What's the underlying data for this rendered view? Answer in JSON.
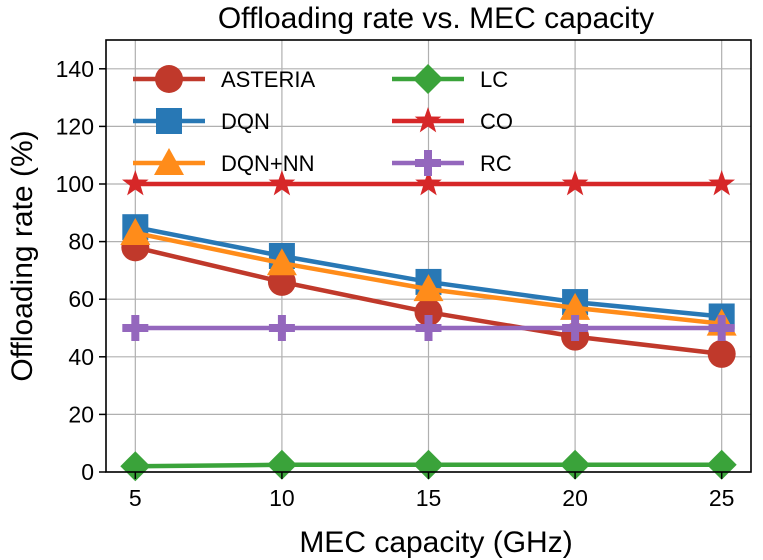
{
  "chart_data": {
    "type": "line",
    "title": "Offloading rate vs. MEC capacity",
    "xlabel": "MEC capacity (GHz)",
    "ylabel": "Offloading rate (%)",
    "x": [
      5,
      10,
      15,
      20,
      25
    ],
    "xticks": [
      5,
      10,
      15,
      20,
      25
    ],
    "yticks": [
      0,
      20,
      40,
      60,
      80,
      100,
      120,
      140
    ],
    "xlim": [
      4,
      26
    ],
    "ylim": [
      0,
      150
    ],
    "grid": true,
    "legend_position": "top",
    "series": [
      {
        "name": "ASTERIA",
        "color": "#c0392b",
        "marker": "circle",
        "values": [
          78,
          66,
          55.5,
          47,
          41
        ]
      },
      {
        "name": "DQN",
        "color": "#2878b5",
        "marker": "square",
        "values": [
          85,
          75,
          66,
          59,
          54
        ]
      },
      {
        "name": "DQN+NN",
        "color": "#ff8c1a",
        "marker": "triangle",
        "values": [
          83,
          72.5,
          63.5,
          57,
          51.5
        ]
      },
      {
        "name": "LC",
        "color": "#3aa33a",
        "marker": "diamond",
        "values": [
          2,
          2.5,
          2.5,
          2.5,
          2.5
        ]
      },
      {
        "name": "CO",
        "color": "#d62728",
        "marker": "star",
        "values": [
          100,
          100,
          100,
          100,
          100
        ]
      },
      {
        "name": "RC",
        "color": "#9467bd",
        "marker": "plus",
        "values": [
          50,
          50,
          50,
          50,
          50
        ]
      }
    ]
  }
}
